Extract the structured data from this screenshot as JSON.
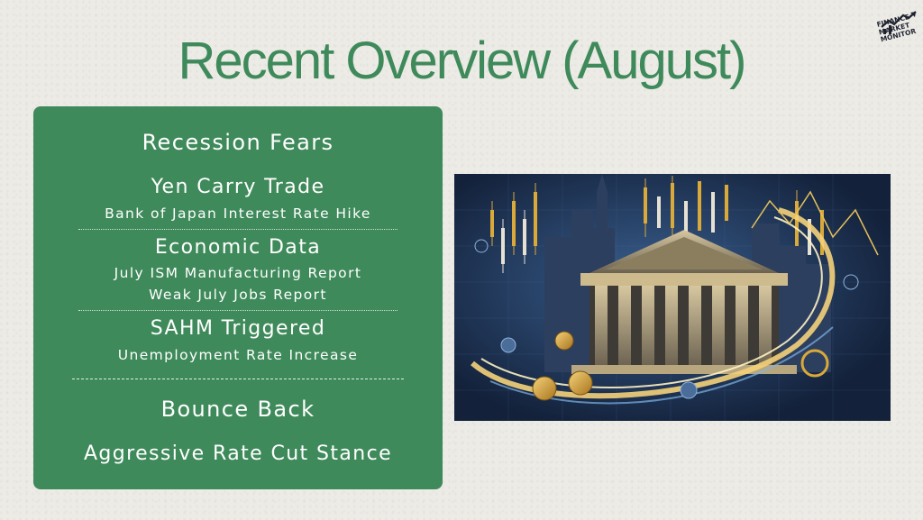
{
  "slide": {
    "title": "Recent Overview (August)"
  },
  "logo": {
    "line1": "FINANCE",
    "line2": "MARKET",
    "line3": "MONITOR"
  },
  "panel": {
    "heading": "Recession Fears",
    "sections": [
      {
        "title": "Yen Carry Trade",
        "items": [
          "Bank of Japan Interest Rate Hike"
        ]
      },
      {
        "title": "Economic Data",
        "items": [
          "July ISM Manufacturing Report",
          "Weak July Jobs Report"
        ]
      },
      {
        "title": "SAHM Triggered",
        "items": [
          "Unemployment Rate Increase"
        ]
      }
    ],
    "bounce_heading": "Bounce Back",
    "bounce_item": "Aggressive Rate Cut Stance"
  },
  "colors": {
    "accent_green": "#3f8a5b",
    "background": "#ecebe6",
    "illustration_navy": "#1b2c49",
    "illustration_gold": "#d9a93a"
  },
  "illustration": {
    "subject": "stock-exchange-building-with-candlestick-charts-and-coins"
  }
}
